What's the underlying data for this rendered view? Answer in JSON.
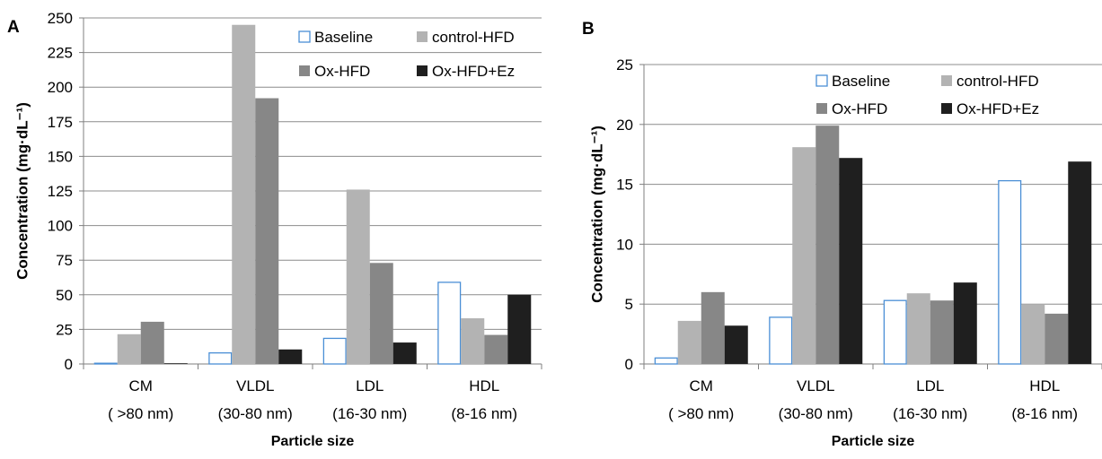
{
  "colors": {
    "baseline_stroke": "#4a8fd6",
    "baseline_fill": "#ffffff",
    "control_hfd": "#b3b3b3",
    "ox_hfd": "#878787",
    "ox_hfd_ez": "#1f1f1f",
    "grid": "#8c8c8c",
    "axis": "#7f7f7f",
    "text": "#000000"
  },
  "chart_data": [
    {
      "panel": "A",
      "type": "bar",
      "title": "",
      "xlabel": "Particle size",
      "ylabel": "Concentration (mg·dL⁻¹)",
      "ylim": [
        0,
        250
      ],
      "yticks": [
        "0",
        "25",
        "50",
        "75",
        "100",
        "125",
        "150",
        "175",
        "200",
        "225",
        "250"
      ],
      "grid": true,
      "legend_position": "top-right",
      "categories": [
        {
          "name": "CM",
          "range": "( >80 nm)"
        },
        {
          "name": "VLDL",
          "range": "(30-80 nm)"
        },
        {
          "name": "LDL",
          "range": "(16-30 nm)"
        },
        {
          "name": "HDL",
          "range": "(8-16 nm)"
        }
      ],
      "series": [
        {
          "name": "Baseline",
          "values": [
            0.5,
            8,
            18.5,
            59
          ]
        },
        {
          "name": "control-HFD",
          "values": [
            21.5,
            245,
            126,
            33
          ]
        },
        {
          "name": "Ox-HFD",
          "values": [
            30.5,
            192,
            73,
            21
          ]
        },
        {
          "name": "Ox-HFD+Ez",
          "values": [
            0.5,
            10.5,
            15.5,
            50
          ]
        }
      ]
    },
    {
      "panel": "B",
      "type": "bar",
      "title": "",
      "xlabel": "Particle size",
      "ylabel": "Concentration (mg·dL⁻¹)",
      "ylim": [
        0,
        25
      ],
      "yticks": [
        "0",
        "5",
        "10",
        "15",
        "20",
        "25"
      ],
      "grid": true,
      "legend_position": "top-right",
      "categories": [
        {
          "name": "CM",
          "range": "( >80 nm)"
        },
        {
          "name": "VLDL",
          "range": "(30-80 nm)"
        },
        {
          "name": "LDL",
          "range": "(16-30 nm)"
        },
        {
          "name": "HDL",
          "range": "(8-16 nm)"
        }
      ],
      "series": [
        {
          "name": "Baseline",
          "values": [
            0.5,
            3.9,
            5.3,
            15.3
          ]
        },
        {
          "name": "control-HFD",
          "values": [
            3.6,
            18.1,
            5.9,
            5.0
          ]
        },
        {
          "name": "Ox-HFD",
          "values": [
            6.0,
            19.9,
            5.3,
            4.2
          ]
        },
        {
          "name": "Ox-HFD+Ez",
          "values": [
            3.2,
            17.2,
            6.8,
            16.9
          ]
        }
      ]
    }
  ]
}
